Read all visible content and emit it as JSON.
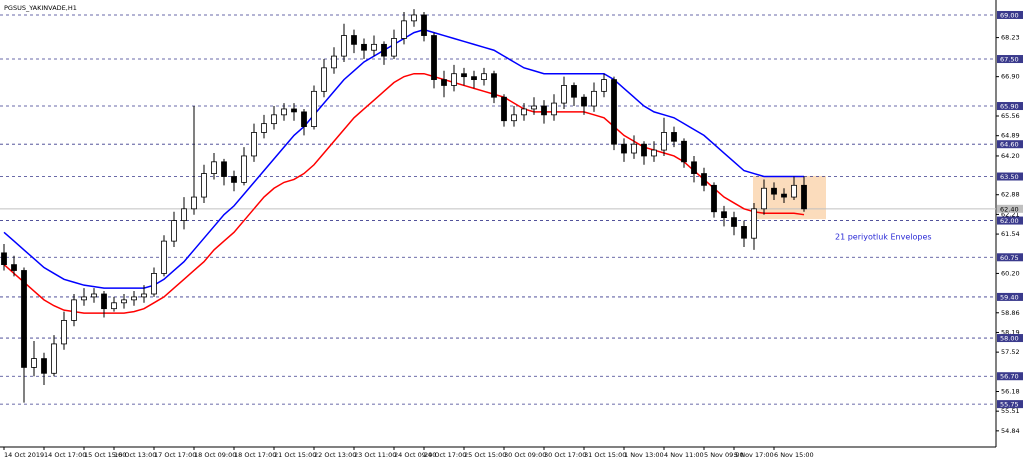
{
  "chart_data": {
    "type": "candlestick",
    "title": "PGSUS_YAKINVADE,H1",
    "annotation": "21 periyotluk Envelopes",
    "annotation_color": "#2b2bd6",
    "up_color": "#ffffff",
    "down_color": "#000000",
    "ylim": [
      54.29,
      69.51
    ],
    "yticks": [
      68.23,
      {
        "value": 66.9,
        "label": "66.90"
      },
      65.56,
      64.89,
      {
        "value": 64.2,
        "label": "64.20"
      },
      62.88,
      62.21,
      61.54,
      {
        "value": 60.2,
        "label": "60.20"
      },
      58.86,
      58.19,
      57.52,
      56.18,
      55.51,
      54.84
    ],
    "levels": [
      {
        "value": 69,
        "label": "69.00"
      },
      {
        "value": 67.5,
        "label": "67.50"
      },
      {
        "value": 65.9,
        "label": "65.90"
      },
      {
        "value": 64.6,
        "label": "64.60"
      },
      {
        "value": 63.5,
        "label": "63.50"
      },
      {
        "value": 62,
        "label": "62.00"
      },
      60.75,
      {
        "value": 59.4,
        "label": "59.40"
      },
      {
        "value": 58,
        "label": "58.00"
      },
      {
        "value": 56.7,
        "label": "56.70"
      },
      55.75
    ],
    "level_color": "#3a3a8c",
    "last_price": {
      "value": 62.4,
      "label": "62.40"
    },
    "highlight": {
      "ylim": [
        62.05,
        63.52
      ],
      "color": "#fbdcbc"
    },
    "categories": [
      "14 Oct 2019",
      null,
      null,
      null,
      "14 Oct 17:00",
      null,
      null,
      null,
      "15 Oct 15:00",
      null,
      null,
      "16 Oct 13:00",
      null,
      null,
      null,
      "17 Oct 17:00",
      null,
      null,
      null,
      "18 Oct 09:00",
      null,
      null,
      null,
      "18 Oct 17:00",
      null,
      null,
      null,
      "21 Oct 15:00",
      null,
      null,
      null,
      "22 Oct 13:00",
      null,
      null,
      null,
      "23 Oct 11:00",
      null,
      null,
      null,
      "24 Oct 09:00",
      null,
      null,
      "24 Oct 17:00",
      null,
      null,
      null,
      "25 Oct 15:00",
      null,
      null,
      null,
      "30 Oct 09:00",
      null,
      null,
      null,
      "30 Oct 17:00",
      null,
      null,
      null,
      "31 Oct 15:00",
      null,
      null,
      null,
      "1 Nov 13:00",
      null,
      null,
      null,
      "4 Nov 11:00",
      null,
      null,
      null,
      "5 Nov 09:00",
      null,
      null,
      "5 Nov 17:00",
      null,
      null,
      null,
      "6 Nov 15:00",
      null,
      null,
      null
    ],
    "open": [
      60.9,
      60.5,
      60.3,
      57.0,
      57.3,
      56.8,
      57.8,
      58.6,
      59.3,
      59.4,
      59.5,
      59.0,
      59.2,
      59.3,
      59.4,
      59.5,
      60.2,
      61.3,
      62.0,
      62.4,
      62.8,
      63.6,
      64.0,
      63.5,
      63.3,
      64.2,
      65.0,
      65.3,
      65.6,
      65.8,
      65.7,
      65.2,
      66.4,
      67.2,
      67.6,
      68.3,
      68.0,
      67.8,
      68.0,
      67.6,
      68.2,
      68.8,
      69.0,
      68.3,
      66.8,
      66.6,
      67.0,
      66.9,
      66.8,
      67.0,
      66.2,
      65.4,
      65.6,
      65.8,
      65.9,
      65.6,
      66.0,
      66.6,
      66.2,
      65.9,
      66.4,
      66.8,
      64.6,
      64.3,
      64.6,
      64.2,
      64.4,
      65.0,
      64.7,
      64.0,
      63.6,
      63.2,
      62.3,
      62.1,
      61.8,
      61.4,
      62.4,
      63.1,
      62.9,
      62.8,
      63.2
    ],
    "high": [
      61.2,
      60.8,
      60.4,
      57.9,
      57.5,
      58.1,
      58.9,
      59.5,
      59.7,
      59.7,
      59.6,
      59.4,
      59.5,
      59.6,
      59.8,
      60.4,
      61.5,
      62.3,
      62.8,
      65.9,
      63.9,
      64.3,
      64.1,
      63.7,
      64.5,
      65.3,
      65.6,
      65.9,
      66.0,
      66.0,
      65.8,
      66.6,
      67.5,
      67.9,
      68.7,
      68.5,
      68.2,
      68.3,
      68.1,
      68.5,
      69.1,
      69.2,
      69.1,
      68.4,
      67.1,
      67.3,
      67.2,
      67.1,
      67.2,
      67.1,
      66.3,
      65.9,
      66.0,
      66.2,
      66.1,
      66.3,
      66.9,
      66.7,
      66.3,
      66.7,
      67.0,
      66.9,
      64.8,
      64.9,
      64.7,
      64.7,
      65.5,
      65.2,
      64.8,
      64.2,
      63.8,
      63.3,
      62.5,
      62.3,
      62.0,
      62.6,
      63.4,
      63.3,
      63.1,
      63.5,
      63.5
    ],
    "low": [
      60.3,
      60.1,
      55.8,
      56.7,
      56.4,
      56.7,
      57.6,
      58.4,
      59.1,
      59.2,
      58.7,
      58.9,
      59.0,
      59.1,
      59.2,
      59.4,
      60.1,
      61.1,
      61.7,
      62.2,
      62.6,
      63.4,
      63.2,
      63.0,
      63.2,
      64.0,
      64.8,
      65.1,
      65.4,
      65.4,
      64.9,
      65.1,
      66.2,
      67.0,
      67.4,
      67.7,
      67.5,
      67.6,
      67.3,
      67.5,
      68.0,
      68.6,
      68.1,
      66.5,
      66.2,
      66.4,
      66.6,
      66.5,
      66.6,
      66.0,
      65.2,
      65.2,
      65.4,
      65.6,
      65.3,
      65.4,
      65.8,
      65.9,
      65.6,
      65.7,
      66.2,
      64.4,
      64.0,
      64.1,
      63.9,
      64.0,
      64.2,
      64.5,
      63.8,
      63.3,
      63.0,
      62.1,
      61.8,
      61.5,
      61.1,
      61.0,
      62.2,
      62.7,
      62.6,
      62.7,
      62.3
    ],
    "close": [
      60.5,
      60.3,
      57.0,
      57.3,
      56.8,
      57.8,
      58.6,
      59.3,
      59.4,
      59.5,
      59.0,
      59.2,
      59.3,
      59.4,
      59.5,
      60.2,
      61.3,
      62.0,
      62.4,
      62.8,
      63.6,
      64.0,
      63.5,
      63.3,
      64.2,
      65.0,
      65.3,
      65.6,
      65.8,
      65.7,
      65.2,
      66.4,
      67.2,
      67.6,
      68.3,
      68.0,
      67.8,
      68.0,
      67.6,
      68.2,
      68.8,
      69.0,
      68.3,
      66.8,
      66.6,
      67.0,
      66.9,
      66.8,
      67.0,
      66.2,
      65.4,
      65.6,
      65.8,
      65.9,
      65.6,
      66.0,
      66.6,
      66.2,
      65.9,
      66.4,
      66.8,
      64.6,
      64.3,
      64.6,
      64.2,
      64.4,
      65.0,
      64.7,
      64.0,
      63.6,
      63.2,
      62.3,
      62.1,
      61.8,
      61.4,
      62.4,
      63.1,
      62.9,
      62.8,
      63.2,
      62.4
    ],
    "series": [
      {
        "color": "#0000ff",
        "values": [
          61.6,
          61.3,
          61.0,
          60.7,
          60.4,
          60.2,
          60.0,
          59.9,
          59.8,
          59.75,
          59.7,
          59.7,
          59.7,
          59.7,
          59.7,
          59.8,
          60.0,
          60.3,
          60.6,
          61.0,
          61.4,
          61.8,
          62.2,
          62.5,
          62.9,
          63.3,
          63.7,
          64.1,
          64.5,
          64.9,
          65.2,
          65.6,
          66.0,
          66.4,
          66.8,
          67.1,
          67.4,
          67.6,
          67.8,
          68.0,
          68.2,
          68.4,
          68.5,
          68.4,
          68.3,
          68.2,
          68.1,
          68.0,
          67.9,
          67.8,
          67.6,
          67.4,
          67.2,
          67.1,
          67.0,
          67.0,
          67.0,
          67.0,
          67.0,
          67.0,
          67.0,
          66.8,
          66.5,
          66.2,
          65.9,
          65.7,
          65.6,
          65.5,
          65.3,
          65.1,
          64.9,
          64.6,
          64.3,
          64.0,
          63.7,
          63.6,
          63.5,
          63.5,
          63.5,
          63.5,
          63.5
        ]
      },
      {
        "color": "#ff0000",
        "values": [
          60.5,
          60.2,
          59.9,
          59.6,
          59.3,
          59.1,
          58.95,
          58.9,
          58.85,
          58.85,
          58.85,
          58.85,
          58.85,
          58.9,
          59.0,
          59.2,
          59.4,
          59.7,
          60.0,
          60.3,
          60.6,
          61.0,
          61.3,
          61.6,
          62.0,
          62.4,
          62.8,
          63.1,
          63.3,
          63.4,
          63.6,
          63.9,
          64.3,
          64.7,
          65.1,
          65.5,
          65.8,
          66.1,
          66.4,
          66.7,
          66.9,
          67.0,
          67.0,
          66.9,
          66.8,
          66.7,
          66.6,
          66.5,
          66.4,
          66.3,
          66.2,
          66.0,
          65.8,
          65.7,
          65.7,
          65.7,
          65.7,
          65.7,
          65.7,
          65.6,
          65.5,
          65.2,
          64.9,
          64.7,
          64.5,
          64.4,
          64.3,
          64.2,
          64.0,
          63.7,
          63.4,
          63.1,
          62.8,
          62.6,
          62.4,
          62.3,
          62.25,
          62.25,
          62.25,
          62.25,
          62.2
        ]
      }
    ]
  }
}
